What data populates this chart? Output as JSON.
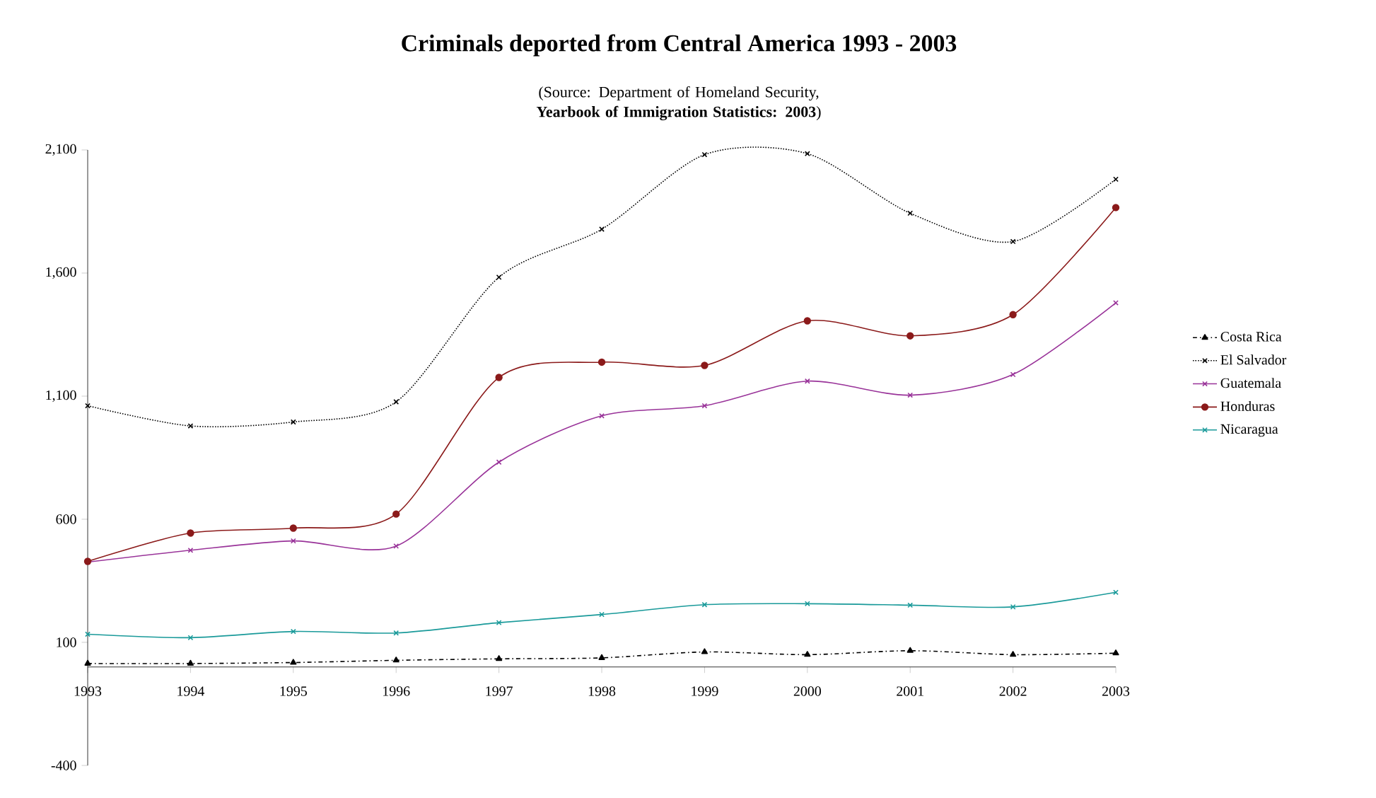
{
  "chart_data": {
    "type": "line",
    "title": "Criminals deported from Central America 1993 - 2003",
    "subtitle": "(Source: Department of Homeland Security, **Yearbook of Immigration Statistics: 2003**)",
    "x": [
      1993,
      1994,
      1995,
      1996,
      1997,
      1998,
      1999,
      2000,
      2001,
      2002,
      2003
    ],
    "series": [
      {
        "name": "Costa Rica",
        "color": "#000000",
        "marker": "triangle",
        "line_style": "dashed",
        "values": [
          14,
          14,
          18,
          27,
          33,
          37,
          61,
          50,
          66,
          50,
          56
        ]
      },
      {
        "name": "El Salvador",
        "color": "#000000",
        "marker": "cross",
        "line_style": "dotted",
        "values": [
          1061,
          979,
          995,
          1077,
          1583,
          1778,
          2081,
          2085,
          1843,
          1728,
          1981
        ]
      },
      {
        "name": "Guatemala",
        "color": "#993399",
        "marker": "cross",
        "line_style": "solid",
        "values": [
          426,
          474,
          512,
          491,
          832,
          1020,
          1061,
          1161,
          1104,
          1188,
          1479
        ]
      },
      {
        "name": "Honduras",
        "color": "#8b1a1a",
        "marker": "circle",
        "line_style": "solid",
        "values": [
          429,
          544,
          564,
          621,
          1176,
          1238,
          1225,
          1406,
          1345,
          1431,
          1866
        ]
      },
      {
        "name": "Nicaragua",
        "color": "#1a9a9a",
        "marker": "cross",
        "line_style": "solid",
        "values": [
          133,
          119,
          144,
          138,
          180,
          213,
          253,
          257,
          251,
          244,
          303
        ]
      }
    ],
    "xlim": [
      1993,
      2003
    ],
    "xticks": [
      1993,
      1994,
      1995,
      1996,
      1997,
      1998,
      1999,
      2000,
      2001,
      2002,
      2003
    ],
    "ylim": [
      -400,
      2100
    ],
    "yticks": [
      {
        "value": -400,
        "label": "-400"
      },
      {
        "value": 100,
        "label": "100"
      },
      {
        "value": 600,
        "label": "600"
      },
      {
        "value": 1100,
        "label": "1,100"
      },
      {
        "value": 1600,
        "label": "1,600"
      },
      {
        "value": 2100,
        "label": "2,100"
      }
    ],
    "legend": "right",
    "grid": false
  }
}
